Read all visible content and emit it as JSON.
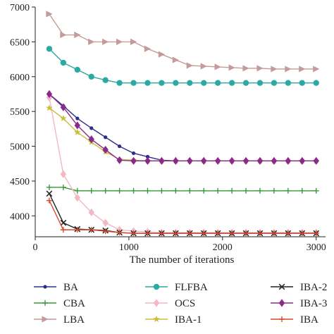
{
  "chart_data": {
    "type": "line",
    "title": "",
    "xlabel": "The number of iterations",
    "ylabel": "",
    "xlim": [
      0,
      3100
    ],
    "ylim": [
      3700,
      7000
    ],
    "xticks": [
      0,
      1000,
      2000,
      3000
    ],
    "yticks": [
      4000,
      4500,
      5000,
      5500,
      6000,
      6500,
      7000
    ],
    "grid": false,
    "legend_placement": "bottom",
    "series": [
      {
        "name": "BA",
        "color": "#2e2e8a",
        "marker": "circle-small",
        "x": [
          150,
          300,
          450,
          600,
          750,
          900,
          1050,
          1200,
          1350,
          1500,
          1650,
          1800,
          1950,
          2100,
          2250,
          2400,
          2550,
          2700,
          2850,
          3000
        ],
        "y": [
          5750,
          5580,
          5400,
          5260,
          5130,
          5000,
          4900,
          4850,
          4800,
          4790,
          4790,
          4790,
          4790,
          4790,
          4790,
          4790,
          4790,
          4790,
          4790,
          4790
        ]
      },
      {
        "name": "CBA",
        "color": "#3a9a3a",
        "marker": "plus",
        "x": [
          150,
          300,
          450,
          600,
          750,
          900,
          1050,
          1200,
          1350,
          1500,
          1650,
          1800,
          1950,
          2100,
          2250,
          2400,
          2550,
          2700,
          2850,
          3000
        ],
        "y": [
          4410,
          4410,
          4360,
          4360,
          4360,
          4360,
          4360,
          4360,
          4360,
          4360,
          4360,
          4360,
          4360,
          4360,
          4360,
          4360,
          4360,
          4360,
          4360,
          4360
        ]
      },
      {
        "name": "LBA",
        "color": "#c49a9a",
        "marker": "triangle-right",
        "x": [
          150,
          300,
          450,
          600,
          750,
          900,
          1050,
          1200,
          1350,
          1500,
          1650,
          1800,
          1950,
          2100,
          2250,
          2400,
          2550,
          2700,
          2850,
          3000
        ],
        "y": [
          6900,
          6600,
          6600,
          6500,
          6500,
          6500,
          6500,
          6400,
          6320,
          6240,
          6160,
          6150,
          6140,
          6130,
          6120,
          6120,
          6110,
          6110,
          6110,
          6110
        ]
      },
      {
        "name": "FLFBA",
        "color": "#2aaaa0",
        "marker": "circle-large",
        "x": [
          150,
          300,
          450,
          600,
          750,
          900,
          1050,
          1200,
          1350,
          1500,
          1650,
          1800,
          1950,
          2100,
          2250,
          2400,
          2550,
          2700,
          2850,
          3000
        ],
        "y": [
          6400,
          6200,
          6100,
          6000,
          5950,
          5910,
          5910,
          5910,
          5910,
          5910,
          5910,
          5910,
          5910,
          5910,
          5910,
          5910,
          5910,
          5910,
          5910,
          5910
        ]
      },
      {
        "name": "OCS",
        "color": "#f2b8c4",
        "marker": "diamond",
        "x": [
          150,
          300,
          450,
          600,
          750,
          900,
          1050,
          1200,
          1350,
          1500,
          1650,
          1800,
          1950,
          2100,
          2250,
          2400,
          2550,
          2700,
          2850,
          3000
        ],
        "y": [
          5700,
          4600,
          4260,
          4050,
          3900,
          3800,
          3780,
          3770,
          3760,
          3760,
          3760,
          3760,
          3760,
          3760,
          3760,
          3760,
          3760,
          3760,
          3760,
          3760
        ]
      },
      {
        "name": "IBA-1",
        "color": "#c8c03a",
        "marker": "star",
        "x": [
          150,
          300,
          450,
          600,
          750,
          900,
          1050,
          1200,
          1350,
          1500,
          1650,
          1800,
          1950,
          2100,
          2250,
          2400,
          2550,
          2700,
          2850,
          3000
        ],
        "y": [
          5550,
          5400,
          5200,
          5060,
          4920,
          4810,
          4800,
          4790,
          4790,
          4790,
          4790,
          4790,
          4790,
          4790,
          4790,
          4790,
          4790,
          4790,
          4790,
          4790
        ]
      },
      {
        "name": "IBA-2",
        "color": "#222222",
        "marker": "x",
        "x": [
          150,
          300,
          450,
          600,
          750,
          900,
          1050,
          1200,
          1350,
          1500,
          1650,
          1800,
          1950,
          2100,
          2250,
          2400,
          2550,
          2700,
          2850,
          3000
        ],
        "y": [
          4320,
          3900,
          3810,
          3800,
          3790,
          3760,
          3750,
          3750,
          3750,
          3750,
          3750,
          3750,
          3750,
          3750,
          3750,
          3750,
          3750,
          3750,
          3750,
          3750
        ]
      },
      {
        "name": "IBA-3",
        "color": "#8a2a8a",
        "marker": "diamond",
        "x": [
          150,
          300,
          450,
          600,
          750,
          900,
          1050,
          1200,
          1350,
          1500,
          1650,
          1800,
          1950,
          2100,
          2250,
          2400,
          2550,
          2700,
          2850,
          3000
        ],
        "y": [
          5750,
          5560,
          5300,
          5100,
          4950,
          4800,
          4790,
          4790,
          4790,
          4790,
          4790,
          4790,
          4790,
          4790,
          4790,
          4790,
          4790,
          4790,
          4790,
          4790
        ]
      },
      {
        "name": "IBA",
        "color": "#d84a2a",
        "marker": "plus",
        "x": [
          150,
          300,
          450,
          600,
          750,
          900,
          1050,
          1200,
          1350,
          1500,
          1650,
          1800,
          1950,
          2100,
          2250,
          2400,
          2550,
          2700,
          2850,
          3000
        ],
        "y": [
          4220,
          3800,
          3800,
          3800,
          3780,
          3760,
          3750,
          3750,
          3750,
          3750,
          3750,
          3750,
          3750,
          3750,
          3750,
          3750,
          3750,
          3750,
          3750,
          3750
        ]
      }
    ],
    "legend": {
      "columns": [
        [
          "BA",
          "CBA",
          "LBA"
        ],
        [
          "FLFBA",
          "OCS",
          "IBA-1"
        ],
        [
          "IBA-2",
          "IBA-3",
          "IBA"
        ]
      ]
    }
  }
}
